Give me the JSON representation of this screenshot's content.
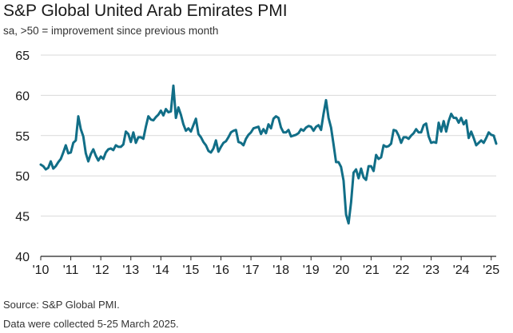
{
  "header": {
    "title": "S&P Global United Arab Emirates PMI",
    "subtitle": "sa, >50 = improvement since previous month"
  },
  "footer": {
    "source": "Source: S&P Global PMI.",
    "note": "Data were collected 5-25 March 2025."
  },
  "colors": {
    "line": "#116e87",
    "grid": "#d9d9d9",
    "axis": "#222222"
  },
  "chart_data": {
    "type": "line",
    "title": "S&P Global United Arab Emirates PMI",
    "subtitle": "sa, >50 = improvement since previous month",
    "xlabel": "",
    "ylabel": "",
    "ylim": [
      40,
      65
    ],
    "xlim": [
      "2010-01",
      "2025-03"
    ],
    "grid": "horizontal",
    "y_ticks": [
      40,
      45,
      50,
      55,
      60,
      65
    ],
    "x_ticks": [
      "'10",
      "'11",
      "'12",
      "'13",
      "'14",
      "'15",
      "'16",
      "'17",
      "'18",
      "'19",
      "'20",
      "'21",
      "'22",
      "'23",
      "'24",
      "'25"
    ],
    "series": [
      {
        "x": [
          "2010-01",
          "2010-02",
          "2010-03",
          "2010-04",
          "2010-05",
          "2010-06",
          "2010-07",
          "2010-08",
          "2010-09",
          "2010-10",
          "2010-11",
          "2010-12",
          "2011-01",
          "2011-02",
          "2011-03",
          "2011-04",
          "2011-05",
          "2011-06",
          "2011-07",
          "2011-08",
          "2011-09",
          "2011-10",
          "2011-11",
          "2011-12",
          "2012-01",
          "2012-02",
          "2012-03",
          "2012-04",
          "2012-05",
          "2012-06",
          "2012-07",
          "2012-08",
          "2012-09",
          "2012-10",
          "2012-11",
          "2012-12",
          "2013-01",
          "2013-02",
          "2013-03",
          "2013-04",
          "2013-05",
          "2013-06",
          "2013-07",
          "2013-08",
          "2013-09",
          "2013-10",
          "2013-11",
          "2013-12",
          "2014-01",
          "2014-02",
          "2014-03",
          "2014-04",
          "2014-05",
          "2014-06",
          "2014-07",
          "2014-08",
          "2014-09",
          "2014-10",
          "2014-11",
          "2014-12",
          "2015-01",
          "2015-02",
          "2015-03",
          "2015-04",
          "2015-05",
          "2015-06",
          "2015-07",
          "2015-08",
          "2015-09",
          "2015-10",
          "2015-11",
          "2015-12",
          "2016-01",
          "2016-02",
          "2016-03",
          "2016-04",
          "2016-05",
          "2016-06",
          "2016-07",
          "2016-08",
          "2016-09",
          "2016-10",
          "2016-11",
          "2016-12",
          "2017-01",
          "2017-02",
          "2017-03",
          "2017-04",
          "2017-05",
          "2017-06",
          "2017-07",
          "2017-08",
          "2017-09",
          "2017-10",
          "2017-11",
          "2017-12",
          "2018-01",
          "2018-02",
          "2018-03",
          "2018-04",
          "2018-05",
          "2018-06",
          "2018-07",
          "2018-08",
          "2018-09",
          "2018-10",
          "2018-11",
          "2018-12",
          "2019-01",
          "2019-02",
          "2019-03",
          "2019-04",
          "2019-05",
          "2019-06",
          "2019-07",
          "2019-08",
          "2019-09",
          "2019-10",
          "2019-11",
          "2019-12",
          "2020-01",
          "2020-02",
          "2020-03",
          "2020-04",
          "2020-05",
          "2020-06",
          "2020-07",
          "2020-08",
          "2020-09",
          "2020-10",
          "2020-11",
          "2020-12",
          "2021-01",
          "2021-02",
          "2021-03",
          "2021-04",
          "2021-05",
          "2021-06",
          "2021-07",
          "2021-08",
          "2021-09",
          "2021-10",
          "2021-11",
          "2021-12",
          "2022-01",
          "2022-02",
          "2022-03",
          "2022-04",
          "2022-05",
          "2022-06",
          "2022-07",
          "2022-08",
          "2022-09",
          "2022-10",
          "2022-11",
          "2022-12",
          "2023-01",
          "2023-02",
          "2023-03",
          "2023-04",
          "2023-05",
          "2023-06",
          "2023-07",
          "2023-08",
          "2023-09",
          "2023-10",
          "2023-11",
          "2023-12",
          "2024-01",
          "2024-02",
          "2024-03",
          "2024-04",
          "2024-05",
          "2024-06",
          "2024-07",
          "2024-08",
          "2024-09",
          "2024-10",
          "2024-11",
          "2024-12",
          "2025-01",
          "2025-02",
          "2025-03"
        ],
        "values": [
          51.4,
          51.2,
          50.8,
          51.0,
          51.8,
          50.9,
          51.2,
          51.7,
          52.1,
          52.9,
          53.8,
          52.8,
          52.9,
          54.1,
          54.4,
          57.4,
          55.8,
          54.9,
          52.8,
          51.8,
          52.7,
          53.3,
          52.5,
          51.9,
          52.4,
          52.1,
          52.9,
          53.3,
          53.4,
          53.2,
          53.8,
          53.6,
          53.6,
          53.9,
          55.5,
          55.2,
          54.2,
          55.4,
          54.1,
          54.8,
          54.8,
          54.6,
          56.1,
          57.4,
          57.0,
          56.9,
          57.3,
          57.6,
          58.1,
          57.5,
          58.3,
          57.9,
          58.0,
          61.2,
          57.2,
          58.5,
          57.6,
          56.4,
          55.6,
          55.9,
          55.5,
          56.3,
          57.1,
          55.2,
          54.8,
          54.2,
          53.8,
          53.1,
          52.9,
          53.4,
          54.4,
          53.0,
          53.6,
          54.1,
          54.3,
          54.8,
          55.4,
          55.6,
          55.7,
          54.2,
          54.1,
          53.8,
          54.6,
          55.1,
          55.4,
          55.9,
          56.0,
          56.1,
          55.2,
          55.8,
          55.3,
          56.4,
          55.9,
          57.1,
          57.4,
          57.2,
          56.0,
          55.4,
          55.4,
          55.7,
          54.9,
          55.0,
          55.1,
          55.3,
          55.8,
          55.6,
          56.0,
          56.2,
          56.1,
          55.6,
          56.1,
          56.3,
          55.7,
          57.7,
          59.4,
          57.2,
          56.0,
          53.9,
          51.7,
          51.7,
          51.1,
          49.4,
          45.2,
          44.1,
          46.7,
          50.4,
          50.8,
          49.7,
          50.9,
          49.8,
          49.5,
          51.2,
          51.2,
          50.6,
          52.6,
          52.1,
          52.3,
          53.8,
          53.6,
          53.7,
          54.0,
          55.7,
          55.6,
          55.0,
          54.1,
          54.8,
          54.8,
          54.6,
          55.0,
          55.3,
          55.8,
          55.4,
          55.4,
          56.3,
          56.5,
          54.9,
          54.1,
          54.2,
          54.1,
          56.6,
          55.5,
          56.8,
          55.5,
          56.8,
          57.7,
          57.2,
          57.2,
          56.6,
          57.2,
          56.4,
          56.9,
          54.7,
          55.5,
          54.7,
          53.8,
          54.1,
          54.4,
          54.1,
          54.7,
          55.4,
          55.1,
          55.0,
          54.0
        ]
      }
    ]
  }
}
